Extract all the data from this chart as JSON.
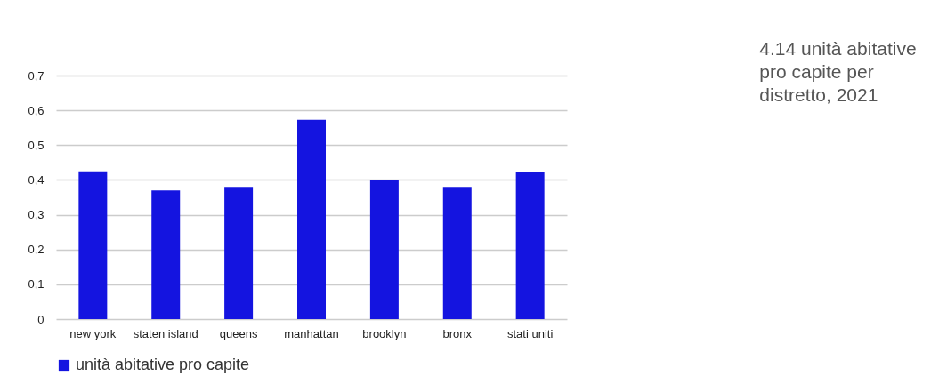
{
  "chart_data": {
    "type": "bar",
    "title": "4.14 unità abitative pro capite per distretto, 2021",
    "categories": [
      "new york",
      "staten island",
      "queens",
      "manhattan",
      "brooklyn",
      "bronx",
      "stati uniti"
    ],
    "series": [
      {
        "name": "unità abitative pro capite",
        "color": "#1414e0",
        "values": [
          0.425,
          0.37,
          0.38,
          0.573,
          0.4,
          0.38,
          0.423
        ]
      }
    ],
    "ylim": [
      0,
      0.7
    ],
    "yticks": [
      {
        "value": 0,
        "label": "0"
      },
      {
        "value": 0.1,
        "label": "0,1"
      },
      {
        "value": 0.2,
        "label": "0,2"
      },
      {
        "value": 0.3,
        "label": "0,3"
      },
      {
        "value": 0.4,
        "label": "0,4"
      },
      {
        "value": 0.5,
        "label": "0,5"
      },
      {
        "value": 0.6,
        "label": "0,6"
      },
      {
        "value": 0.7,
        "label": "0,7"
      }
    ],
    "grid": "y",
    "legend": "bottom"
  }
}
